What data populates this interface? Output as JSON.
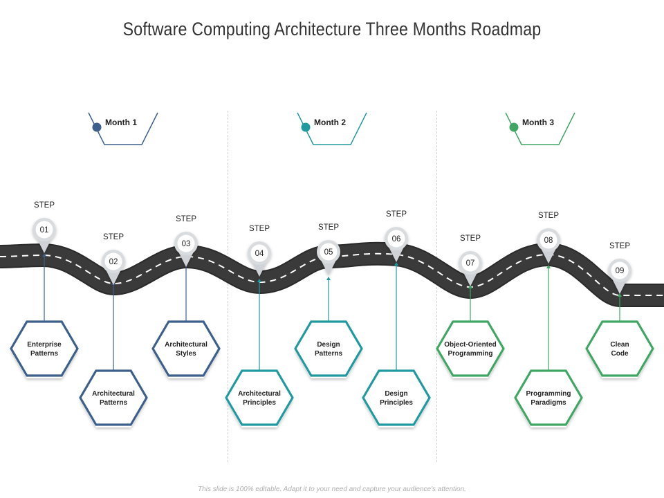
{
  "title": "Software Computing Architecture Three Months Roadmap",
  "footer": "This slide is 100% editable. Adapt it to your need and capture your audience's attention.",
  "colors": {
    "month1": "#3d5f8c",
    "month2": "#1e9aa0",
    "month3": "#3fa664",
    "road": "#3a3a3a",
    "text": "#222222"
  },
  "months": [
    {
      "label": "Month 1"
    },
    {
      "label": "Month 2"
    },
    {
      "label": "Month 3"
    }
  ],
  "steps": [
    {
      "label": "STEP",
      "number": "01",
      "lines": [
        "Enterprise",
        "Patterns"
      ]
    },
    {
      "label": "STEP",
      "number": "02",
      "lines": [
        "Architectural",
        "Patterns"
      ]
    },
    {
      "label": "STEP",
      "number": "03",
      "lines": [
        "Architectural",
        "Styles"
      ]
    },
    {
      "label": "STEP",
      "number": "04",
      "lines": [
        "Architectural",
        "Principles"
      ]
    },
    {
      "label": "STEP",
      "number": "05",
      "lines": [
        "Design",
        "Patterns"
      ]
    },
    {
      "label": "STEP",
      "number": "06",
      "lines": [
        "Design",
        "Principles"
      ]
    },
    {
      "label": "STEP",
      "number": "07",
      "lines": [
        "Object-Oriented",
        "Programming"
      ]
    },
    {
      "label": "STEP",
      "number": "08",
      "lines": [
        "Programming",
        "Paradigms"
      ]
    },
    {
      "label": "STEP",
      "number": "09",
      "lines": [
        "Clean",
        "Code"
      ]
    }
  ]
}
